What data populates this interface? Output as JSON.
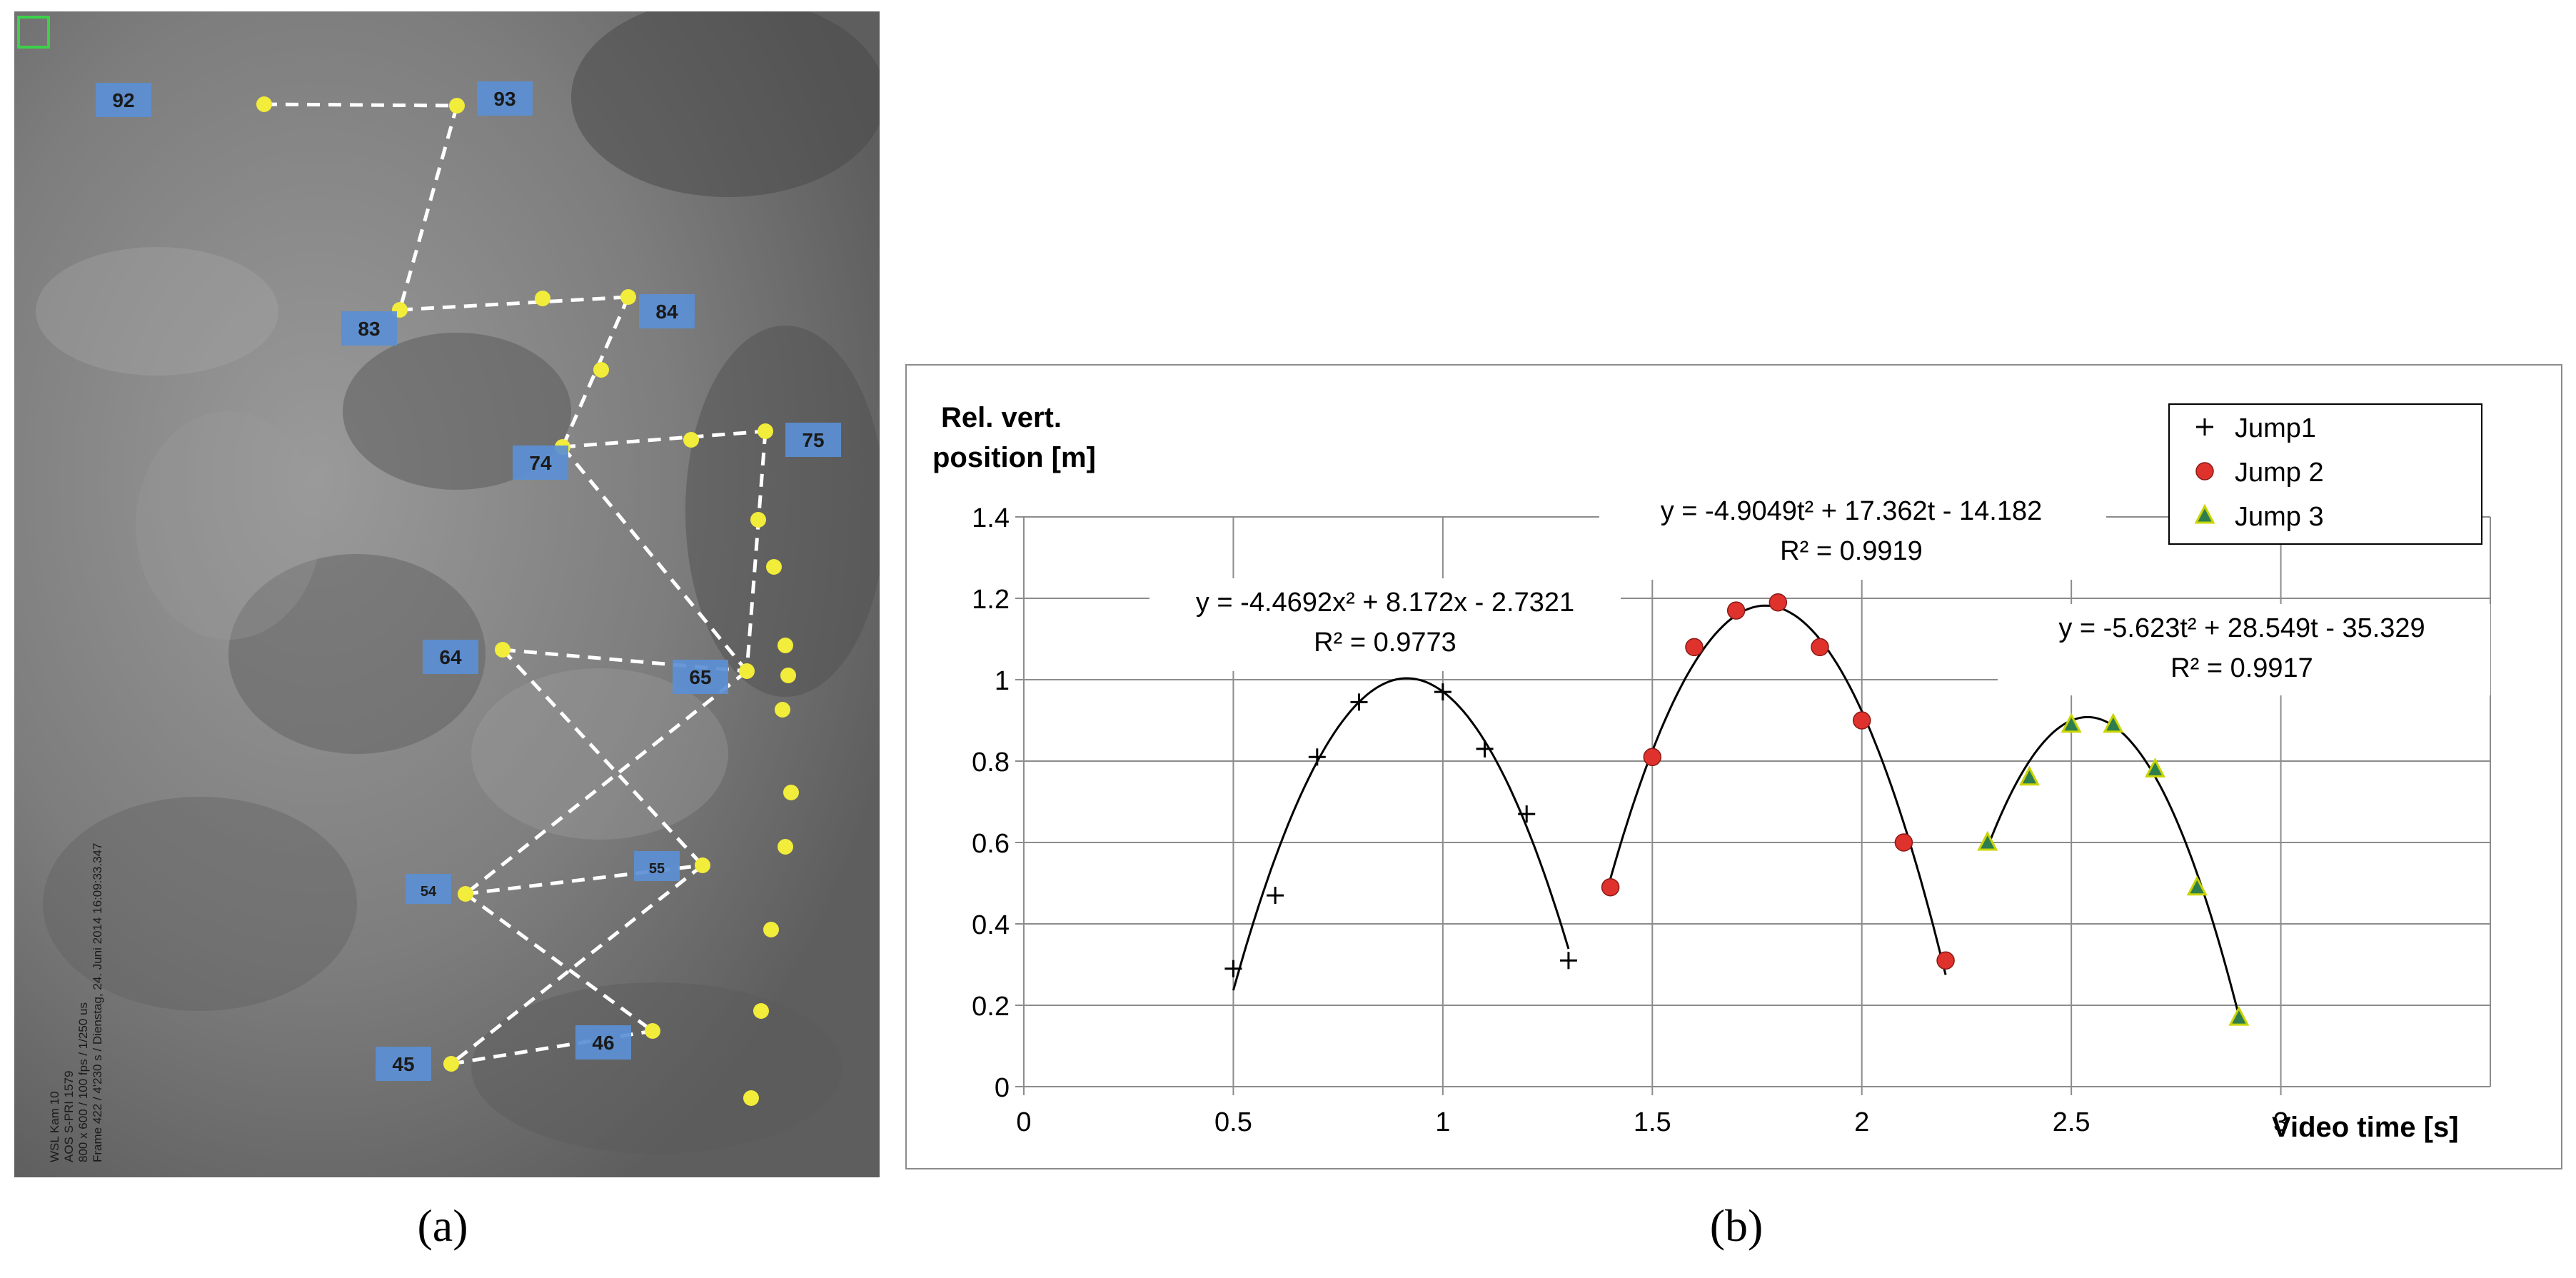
{
  "captions": {
    "a": "(a)",
    "b": "(b)"
  },
  "photo": {
    "markers": [
      {
        "label": "92"
      },
      {
        "label": "93"
      },
      {
        "label": "83"
      },
      {
        "label": "84"
      },
      {
        "label": "74"
      },
      {
        "label": "75"
      },
      {
        "label": "64"
      },
      {
        "label": "65"
      },
      {
        "label": "54"
      },
      {
        "label": "55"
      },
      {
        "label": "45"
      },
      {
        "label": "46"
      }
    ],
    "camera_text": [
      "WSL Kam 10",
      "AOS S-PRI 1579",
      "800 x 600 / 100 fps / 1/250 us",
      "Frame 422 / 4'230 s / Dienstag, 24. Juni 2014 16:09:33.347"
    ],
    "colors": {
      "marker": "#5b8fd4",
      "dot": "#f2ec3a",
      "path": "#ffffff"
    }
  },
  "chart_data": {
    "type": "scatter",
    "ylabel": [
      "Rel. vert.",
      "position [m]"
    ],
    "xlabel": "Video  time  [s]",
    "xlim": [
      0,
      3.5
    ],
    "ylim": [
      0,
      1.4
    ],
    "xticks": [
      0,
      0.5,
      1,
      1.5,
      2,
      2.5,
      3
    ],
    "xtick_labels": [
      "0",
      "0.5",
      "1",
      "1.5",
      "2",
      "2.5",
      "3"
    ],
    "yticks": [
      0,
      0.2,
      0.4,
      0.6,
      0.8,
      1,
      1.2,
      1.4
    ],
    "ytick_labels": [
      "0",
      "0.2",
      "0.4",
      "0.6",
      "0.8",
      "1",
      "1.2",
      "1.4"
    ],
    "grid": true,
    "legend_position": "top-right",
    "series": [
      {
        "name": "Jump1",
        "marker": "cross",
        "color": "#000000",
        "x": [
          0.5,
          0.6,
          0.7,
          0.8,
          1.0,
          1.1,
          1.2,
          1.3
        ],
        "y": [
          0.29,
          0.47,
          0.81,
          0.945,
          0.97,
          0.83,
          0.67,
          0.31
        ],
        "fit": {
          "a": -4.4692,
          "b": 8.172,
          "c": -2.7321,
          "x_range": [
            0.5,
            1.3
          ]
        },
        "equation": "y = -4.4692x² + 8.172x - 2.7321",
        "r2": "R² = 0.9773"
      },
      {
        "name": "Jump 2",
        "marker": "circle",
        "color": "#e0322c",
        "x": [
          1.4,
          1.5,
          1.6,
          1.7,
          1.8,
          1.9,
          2.0,
          2.1,
          2.2
        ],
        "y": [
          0.49,
          0.81,
          1.08,
          1.17,
          1.19,
          1.08,
          0.9,
          0.6,
          0.31
        ],
        "fit": {
          "a": -4.9049,
          "b": 17.362,
          "c": -14.182,
          "x_range": [
            1.4,
            2.2
          ]
        },
        "equation": "y = -4.9049t² + 17.362t - 14.182",
        "r2": "R² = 0.9919"
      },
      {
        "name": "Jump 3",
        "marker": "triangle",
        "color": "#2e7d4f",
        "x": [
          2.3,
          2.4,
          2.5,
          2.6,
          2.7,
          2.8,
          2.9
        ],
        "y": [
          0.6,
          0.76,
          0.89,
          0.89,
          0.78,
          0.49,
          0.17
        ],
        "fit": {
          "a": -5.623,
          "b": 28.549,
          "c": -35.329,
          "x_range": [
            2.3,
            2.9
          ]
        },
        "equation": "y = -5.623t² + 28.549t - 35.329",
        "r2": "R² = 0.9917"
      }
    ]
  }
}
